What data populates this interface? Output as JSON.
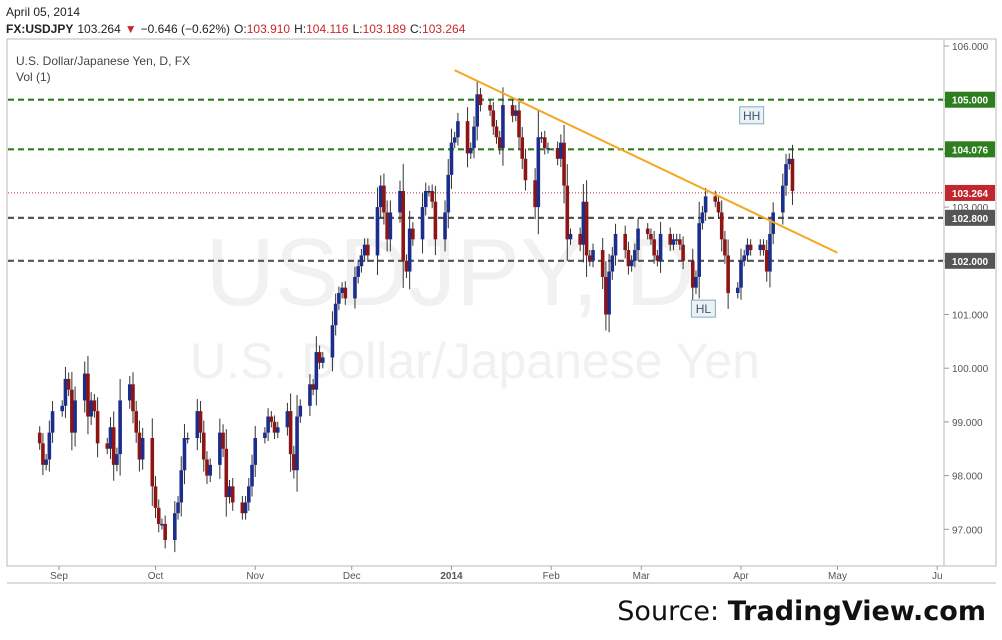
{
  "header": {
    "date": "April 05, 2014",
    "symbol": "FX:USDJPY",
    "last": "103.264",
    "change_arrow": "▼",
    "change": "−0.646 (−0.62%)",
    "open_label": "O:",
    "open": "103.910",
    "high_label": "H:",
    "high": "104.116",
    "low_label": "L:",
    "low": "103.189",
    "close_label": "C:",
    "close": "103.264"
  },
  "legend": {
    "title": "U.S. Dollar/Japanese Yen, D, FX",
    "vol": "Vol (1)"
  },
  "watermark": {
    "symbol": "USDJPY, D",
    "name": "U.S. Dollar/Japanese Yen"
  },
  "source": {
    "prefix": "Source: ",
    "brand": "TradingView.com"
  },
  "colors": {
    "up": "#1c2e8c",
    "down": "#8e1515",
    "green_line": "#2e7d1f",
    "gray_line": "#555555",
    "trend": "#f5a623",
    "price_line": "#c0282d"
  },
  "chart_data": {
    "type": "candlestick",
    "ylim": [
      96.2,
      106.2
    ],
    "y_ticks": [
      "106.000",
      "105.000",
      "104.000",
      "103.000",
      "102.000",
      "101.000",
      "100.000",
      "99.000",
      "98.000",
      "97.000"
    ],
    "x_ticks": [
      "Sep",
      "Oct",
      "Nov",
      "Dec",
      "2014",
      "Feb",
      "Mar",
      "Apr",
      "May",
      "Ju"
    ],
    "levels": [
      {
        "value": 105.0,
        "label": "105.000",
        "color": "green"
      },
      {
        "value": 104.076,
        "label": "104.076",
        "color": "green"
      },
      {
        "value": 102.8,
        "label": "102.800",
        "color": "gray"
      },
      {
        "value": 102.0,
        "label": "102.000",
        "color": "gray"
      }
    ],
    "last_price": {
      "value": 103.264,
      "label": "103.264"
    },
    "trendline": {
      "from": {
        "date": "2014-01-02",
        "value": 105.55
      },
      "to": {
        "date": "2014-05-01",
        "value": 102.15
      }
    },
    "annotations": [
      {
        "text": "HH",
        "date": "2014-04-04",
        "value": 104.7
      },
      {
        "text": "HL",
        "date": "2014-03-20",
        "value": 101.1
      }
    ],
    "start_date": "2013-08-26",
    "series_note": "daily OHLC, Aug 26 2013 – Apr 4 2014",
    "close": [
      98.6,
      98.2,
      98.3,
      98.8,
      99.2,
      99.3,
      99.8,
      99.6,
      98.8,
      99.4,
      99.9,
      99.1,
      99.4,
      99.2,
      98.6,
      98.5,
      98.9,
      98.2,
      98.4,
      99.4,
      99.7,
      99.2,
      98.8,
      98.3,
      98.7,
      97.8,
      97.4,
      97.1,
      97.1,
      96.8,
      97.3,
      97.5,
      98.1,
      98.7,
      98.7,
      99.2,
      98.8,
      98.3,
      98.0,
      98.2,
      98.8,
      98.5,
      97.6,
      97.8,
      97.5,
      97.3,
      97.5,
      97.8,
      98.2,
      98.7,
      98.8,
      99.1,
      99.0,
      98.8,
      98.9,
      99.2,
      98.4,
      98.1,
      99.1,
      99.3,
      99.7,
      99.6,
      100.3,
      100.1,
      100.2,
      100.8,
      101.2,
      101.4,
      101.5,
      101.3,
      101.7,
      101.9,
      102.1,
      102.3,
      102.1,
      103.0,
      103.4,
      102.9,
      102.4,
      102.9,
      103.3,
      102.0,
      101.8,
      102.6,
      102.4,
      103.0,
      103.3,
      103.3,
      103.1,
      102.4,
      102.9,
      103.6,
      104.2,
      104.3,
      104.6,
      104.0,
      104.1,
      104.5,
      105.1,
      104.9,
      104.8,
      104.5,
      104.3,
      104.1,
      104.9,
      104.7,
      104.8,
      104.3,
      103.9,
      103.5,
      103.0,
      104.3,
      104.3,
      104.1,
      104.1,
      103.9,
      104.2,
      103.4,
      102.4,
      102.5,
      102.3,
      103.1,
      102.1,
      102.0,
      102.2,
      101.7,
      101.0,
      101.8,
      102.1,
      102.5,
      102.2,
      101.9,
      102.0,
      102.2,
      102.6,
      102.5,
      102.4,
      102.1,
      102.0,
      102.5,
      102.3,
      102.4,
      102.4,
      102.3,
      102.0,
      101.5,
      101.7,
      102.7,
      102.9,
      103.2,
      103.1,
      102.9,
      102.4,
      102.1,
      101.4,
      101.5,
      102.0,
      102.1,
      102.3,
      102.2,
      102.3,
      102.2,
      101.8,
      102.5,
      102.9,
      103.4,
      103.8,
      103.9,
      103.3
    ]
  }
}
